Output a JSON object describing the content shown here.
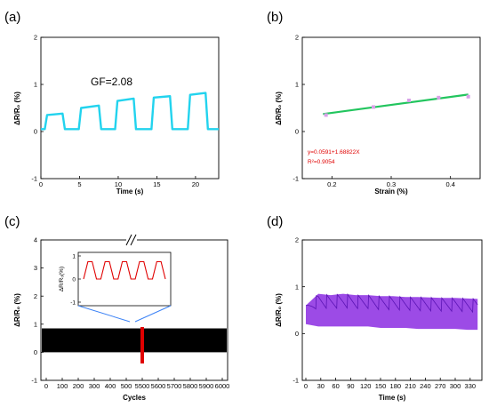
{
  "chart_data": [
    {
      "panel": "(a)",
      "type": "line",
      "xlabel": "Time (s)",
      "ylabel": "ΔR/R₀ (%)",
      "xlim": [
        0,
        23
      ],
      "ylim": [
        -1,
        2
      ],
      "xticks": [
        0,
        5,
        10,
        15,
        20
      ],
      "yticks": [
        -1,
        0,
        1,
        2
      ],
      "annotation": "GF=2.08",
      "color": "#22d3ee",
      "series": [
        {
          "x": [
            0,
            0.5,
            0.8,
            2.8,
            3.1,
            4.9,
            5.2,
            7.5,
            7.8,
            9.6,
            9.9,
            12.0,
            12.3,
            14.3,
            14.6,
            16.7,
            17.0,
            19.0,
            19.3,
            21.3,
            21.6,
            23
          ],
          "y": [
            0.05,
            0.05,
            0.35,
            0.38,
            0.05,
            0.05,
            0.5,
            0.55,
            0.05,
            0.05,
            0.65,
            0.7,
            0.05,
            0.05,
            0.72,
            0.75,
            0.05,
            0.05,
            0.78,
            0.82,
            0.05,
            0.05
          ]
        }
      ]
    },
    {
      "panel": "(b)",
      "type": "scatter",
      "xlabel": "Strain (%)",
      "ylabel": "ΔR/R₀ (%)",
      "xlim": [
        0.15,
        0.45
      ],
      "ylim": [
        -1,
        2
      ],
      "xticks": [
        0.2,
        0.3,
        0.4
      ],
      "yticks": [
        -1,
        0,
        1,
        2
      ],
      "points": {
        "x": [
          0.19,
          0.27,
          0.33,
          0.38,
          0.43
        ],
        "y": [
          0.35,
          0.52,
          0.66,
          0.72,
          0.74
        ]
      },
      "fit": {
        "intercept": 0.0591,
        "slope": 1.68822,
        "x_range": [
          0.185,
          0.43
        ]
      },
      "fit_label": "y=0.0591+1.68822X",
      "r2_label": "R²=0.9054",
      "fit_color": "#22c55e",
      "point_color": "#d8a0e8"
    },
    {
      "panel": "(c)",
      "type": "area",
      "xlabel": "Cycles",
      "ylabel": "ΔR/R₀ (%)",
      "xlim": [
        0,
        6000
      ],
      "ylim": [
        -1,
        4
      ],
      "xticks": [
        0,
        100,
        200,
        300,
        400,
        500,
        5500,
        5600,
        5700,
        5800,
        5900,
        6000
      ],
      "yticks": [
        -1,
        0,
        1,
        2,
        3,
        4
      ],
      "band": {
        "min": 0.0,
        "max": 0.85
      },
      "highlight": {
        "x": 5500,
        "min": -0.4,
        "max": 0.9,
        "color": "#e00000"
      },
      "break_mark": "//",
      "inset": {
        "ylabel": "ΔR/R₀(%)",
        "ylim": [
          -1,
          1
        ],
        "yticks": [
          -1,
          0,
          1
        ],
        "color": "#e00000",
        "series": {
          "y": [
            0.0,
            0.75,
            0.75,
            0.0,
            0.0,
            0.75,
            0.75,
            0.0,
            0.0,
            0.75,
            0.75,
            0.0,
            0.0,
            0.75,
            0.75,
            0.0,
            0.0,
            0.75,
            0.75,
            0.0
          ]
        }
      }
    },
    {
      "panel": "(d)",
      "type": "area",
      "xlabel": "Time (s)",
      "ylabel": "ΔR/R₀ (%)",
      "xlim": [
        0,
        350
      ],
      "ylim": [
        -1,
        2
      ],
      "xticks": [
        0,
        30,
        60,
        90,
        120,
        150,
        180,
        210,
        240,
        270,
        300,
        330
      ],
      "yticks": [
        -1,
        0,
        1,
        2
      ],
      "color": "#8b2be2",
      "band": {
        "x": [
          0,
          25,
          50,
          75,
          100,
          125,
          150,
          175,
          200,
          225,
          250,
          275,
          300,
          325,
          345
        ],
        "top": [
          0.6,
          0.85,
          0.82,
          0.85,
          0.82,
          0.82,
          0.8,
          0.8,
          0.78,
          0.78,
          0.77,
          0.76,
          0.76,
          0.75,
          0.74
        ],
        "base": [
          0.2,
          0.15,
          0.15,
          0.15,
          0.15,
          0.15,
          0.12,
          0.12,
          0.12,
          0.1,
          0.1,
          0.1,
          0.1,
          0.08,
          0.08
        ]
      }
    }
  ]
}
